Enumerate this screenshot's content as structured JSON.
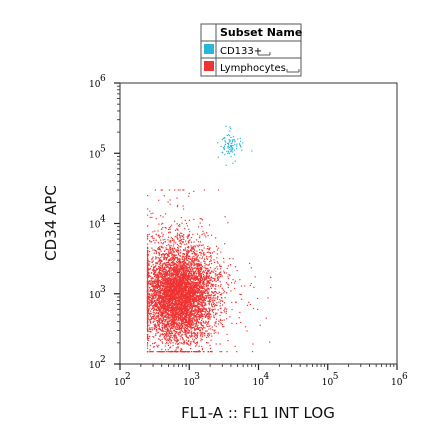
{
  "chart_data": {
    "type": "scatter",
    "x_axis": {
      "label": "FL1-A :: FL1 INT LOG",
      "scale": "log",
      "range": [
        100,
        1000000
      ],
      "ticks": [
        {
          "base": "10",
          "exp": "2"
        },
        {
          "base": "10",
          "exp": "3"
        },
        {
          "base": "10",
          "exp": "4"
        },
        {
          "base": "10",
          "exp": "5"
        },
        {
          "base": "10",
          "exp": "6"
        }
      ]
    },
    "y_axis": {
      "label": "CD34 APC",
      "scale": "log",
      "range": [
        100,
        1000000
      ],
      "ticks": [
        {
          "base": "10",
          "exp": "2"
        },
        {
          "base": "10",
          "exp": "3"
        },
        {
          "base": "10",
          "exp": "4"
        },
        {
          "base": "10",
          "exp": "5"
        },
        {
          "base": "10",
          "exp": "6"
        }
      ]
    },
    "legend": {
      "title": "Subset Name",
      "placement": "top-center, above plot",
      "entries": [
        {
          "label": "CD133+",
          "color": "#29b6d8"
        },
        {
          "label": "Lymphocytes",
          "color": "#ee3333"
        }
      ]
    },
    "series": [
      {
        "name": "CD133+",
        "color": "#29b6d8",
        "approx_event_count": 90,
        "center": {
          "x": 4000,
          "y": 130000
        },
        "x_extent": [
          2500,
          8000
        ],
        "y_extent": [
          60000,
          250000
        ]
      },
      {
        "name": "Lymphocytes",
        "color": "#ee3333",
        "approx_event_count": 6000,
        "center": {
          "x": 700,
          "y": 1000
        },
        "x_extent": [
          250,
          15000
        ],
        "y_extent": [
          150,
          30000
        ]
      }
    ],
    "grid": false
  }
}
